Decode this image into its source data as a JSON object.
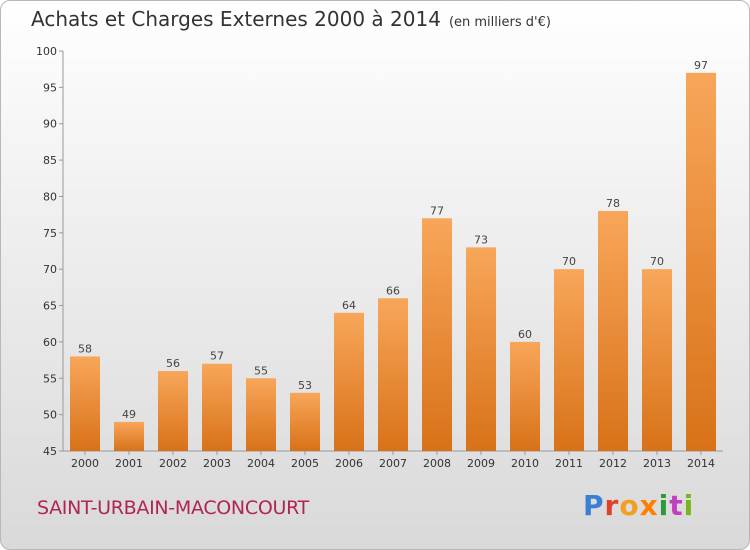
{
  "header": {
    "title": "Achats et Charges Externes 2000 à 2014",
    "unit": "(en milliers d'€)"
  },
  "footer": {
    "commune": "SAINT-URBAIN-MACONCOURT",
    "logo_text": "Proxiti",
    "logo_colors": [
      "#3a7fd4",
      "#e0402a",
      "#f0a020",
      "#ff7f00",
      "#2a9a3a",
      "#c040c0",
      "#7ab51d"
    ]
  },
  "colors": {
    "bar_light": "#f8a65a",
    "bar_dark": "#d87218",
    "commune": "#b02552"
  },
  "chart_data": {
    "type": "bar",
    "title": "Achats et Charges Externes 2000 à 2014",
    "subtitle": "(en milliers d'€)",
    "categories": [
      "2000",
      "2001",
      "2002",
      "2003",
      "2004",
      "2005",
      "2006",
      "2007",
      "2008",
      "2009",
      "2010",
      "2011",
      "2012",
      "2013",
      "2014"
    ],
    "values": [
      58,
      49,
      56,
      57,
      55,
      53,
      64,
      66,
      77,
      73,
      60,
      70,
      78,
      70,
      97
    ],
    "ylim": [
      45,
      100
    ],
    "yticks": [
      45,
      50,
      55,
      60,
      65,
      70,
      75,
      80,
      85,
      90,
      95,
      100
    ],
    "grid": false,
    "legend": "none"
  }
}
